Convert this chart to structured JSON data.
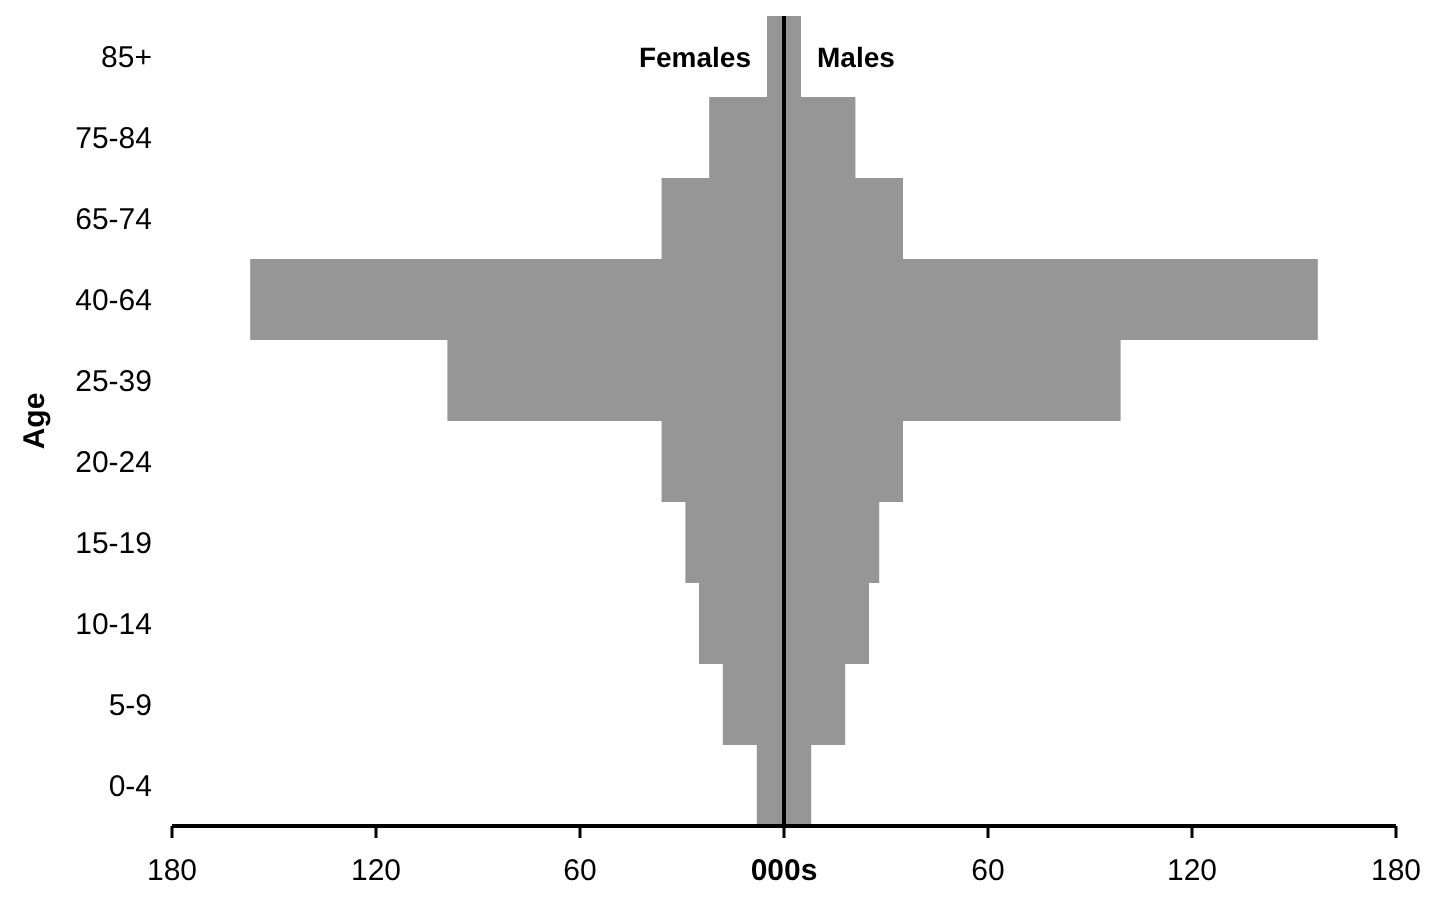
{
  "chart_data": {
    "type": "bar",
    "orientation": "horizontal",
    "xlabel": "000s",
    "ylabel": "Age",
    "categories": [
      "85+",
      "75-84",
      "65-74",
      "40-64",
      "25-39",
      "20-24",
      "15-19",
      "10-14",
      "5-9",
      "0-4"
    ],
    "series": [
      {
        "name": "Females",
        "color": "#969696",
        "values": [
          -5,
          -22,
          -36,
          -157,
          -99,
          -36,
          -29,
          -25,
          -18,
          -8
        ]
      },
      {
        "name": "Males",
        "color": "#969696",
        "values": [
          5,
          21,
          35,
          157,
          99,
          35,
          28,
          25,
          18,
          8
        ]
      }
    ],
    "xlim": [
      -180,
      180
    ],
    "xticks": [
      {
        "value": -180,
        "label": "180"
      },
      {
        "value": -120,
        "label": "120"
      },
      {
        "value": -60,
        "label": "60"
      },
      {
        "value": 0,
        "label": null
      },
      {
        "value": 60,
        "label": "60"
      },
      {
        "value": 120,
        "label": "120"
      },
      {
        "value": 180,
        "label": "180"
      }
    ],
    "stacked": true
  }
}
